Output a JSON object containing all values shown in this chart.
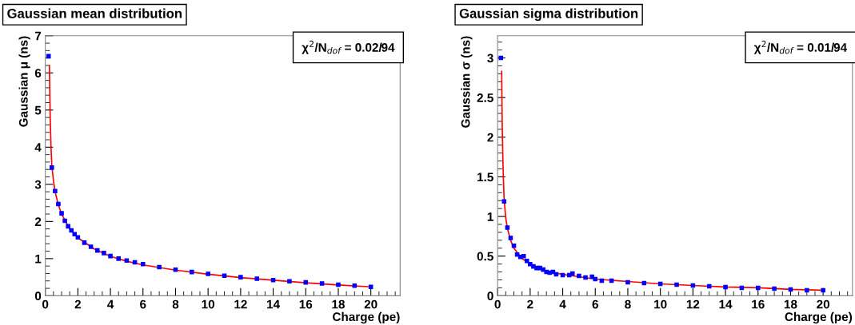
{
  "chart_data": [
    {
      "type": "scatter",
      "title": "Gaussian mean distribution",
      "xlabel": "Charge (pe)",
      "ylabel": "Gaussian μ (ns)",
      "annotations": [
        "χ$^{2}$/N$_{dof}$ = 0.02/94"
      ],
      "xlim": [
        0,
        21.8
      ],
      "ylim": [
        0,
        7
      ],
      "xticks": [
        0,
        2,
        4,
        6,
        8,
        10,
        12,
        14,
        16,
        18,
        20
      ],
      "yticks": [
        0,
        1,
        2,
        3,
        4,
        5,
        6,
        7
      ],
      "grid": false,
      "legend": false,
      "series": [
        {
          "marker": "square",
          "color": "#0000ff",
          "x": [
            0.2,
            0.4,
            0.6,
            0.8,
            1.0,
            1.2,
            1.4,
            1.6,
            1.8,
            2.0,
            2.4,
            2.8,
            3.2,
            3.6,
            4.0,
            4.5,
            5.0,
            5.5,
            6.0,
            7.0,
            8.0,
            9.0,
            10.0,
            11.0,
            12.0,
            13.0,
            14.0,
            15.0,
            16.0,
            17.0,
            18.0,
            19.0,
            20.0
          ],
          "values": [
            6.45,
            3.45,
            2.82,
            2.47,
            2.22,
            2.02,
            1.87,
            1.76,
            1.66,
            1.57,
            1.43,
            1.32,
            1.22,
            1.15,
            1.07,
            1.0,
            0.95,
            0.9,
            0.85,
            0.77,
            0.7,
            0.64,
            0.59,
            0.54,
            0.5,
            0.46,
            0.42,
            0.39,
            0.36,
            0.33,
            0.3,
            0.27,
            0.24
          ]
        },
        {
          "type": "line",
          "line_style": "solid",
          "color": "#ff0000",
          "x": [
            0.25,
            0.3,
            0.35,
            0.4,
            0.5,
            0.6,
            0.8,
            1.0,
            1.5,
            2.0,
            3.0,
            4.0,
            5.0,
            6.0,
            8.0,
            10.0,
            12.0,
            14.0,
            16.0,
            18.0,
            20.0
          ],
          "values": [
            6.2,
            4.8,
            4.0,
            3.5,
            3.1,
            2.8,
            2.45,
            2.2,
            1.8,
            1.56,
            1.26,
            1.06,
            0.93,
            0.83,
            0.69,
            0.58,
            0.49,
            0.42,
            0.35,
            0.29,
            0.24
          ]
        }
      ]
    },
    {
      "type": "scatter",
      "title": "Gaussian sigma distribution",
      "xlabel": "Charge (pe)",
      "ylabel": "Gaussian σ (ns)",
      "annotations": [
        "χ$^{2}$/N$_{dof}$ = 0.01/94"
      ],
      "xlim": [
        0,
        21.8
      ],
      "ylim": [
        0,
        3.28
      ],
      "xticks": [
        0,
        2,
        4,
        6,
        8,
        10,
        12,
        14,
        16,
        18,
        20
      ],
      "yticks": [
        0,
        0.5,
        1,
        1.5,
        2,
        2.5,
        3
      ],
      "grid": false,
      "legend": false,
      "series": [
        {
          "marker": "square",
          "color": "#0000ff",
          "x": [
            0.2,
            0.4,
            0.6,
            0.8,
            1.0,
            1.2,
            1.4,
            1.6,
            1.8,
            2.0,
            2.2,
            2.4,
            2.6,
            2.8,
            3.0,
            3.2,
            3.4,
            3.6,
            4.0,
            4.4,
            4.6,
            5.0,
            5.4,
            5.8,
            6.0,
            6.4,
            7.0,
            8.0,
            9.0,
            10.0,
            11.0,
            12.0,
            13.0,
            14.0,
            15.0,
            16.0,
            17.0,
            18.0,
            19.0,
            20.0
          ],
          "values": [
            3.0,
            1.19,
            0.86,
            0.73,
            0.63,
            0.52,
            0.49,
            0.5,
            0.44,
            0.4,
            0.37,
            0.35,
            0.35,
            0.33,
            0.3,
            0.29,
            0.3,
            0.27,
            0.26,
            0.26,
            0.28,
            0.25,
            0.23,
            0.24,
            0.21,
            0.19,
            0.19,
            0.17,
            0.16,
            0.15,
            0.14,
            0.13,
            0.12,
            0.11,
            0.1,
            0.1,
            0.09,
            0.08,
            0.07,
            0.07
          ]
        },
        {
          "type": "line",
          "line_style": "solid",
          "color": "#ff0000",
          "x": [
            0.25,
            0.28,
            0.32,
            0.36,
            0.4,
            0.5,
            0.6,
            0.8,
            1.0,
            1.5,
            2.0,
            3.0,
            4.0,
            5.0,
            6.0,
            8.0,
            10.0,
            12.0,
            14.0,
            16.0,
            18.0,
            20.0
          ],
          "values": [
            2.83,
            2.2,
            1.75,
            1.45,
            1.22,
            0.98,
            0.85,
            0.7,
            0.6,
            0.47,
            0.4,
            0.31,
            0.27,
            0.24,
            0.21,
            0.18,
            0.15,
            0.13,
            0.11,
            0.1,
            0.08,
            0.07
          ]
        }
      ]
    }
  ]
}
